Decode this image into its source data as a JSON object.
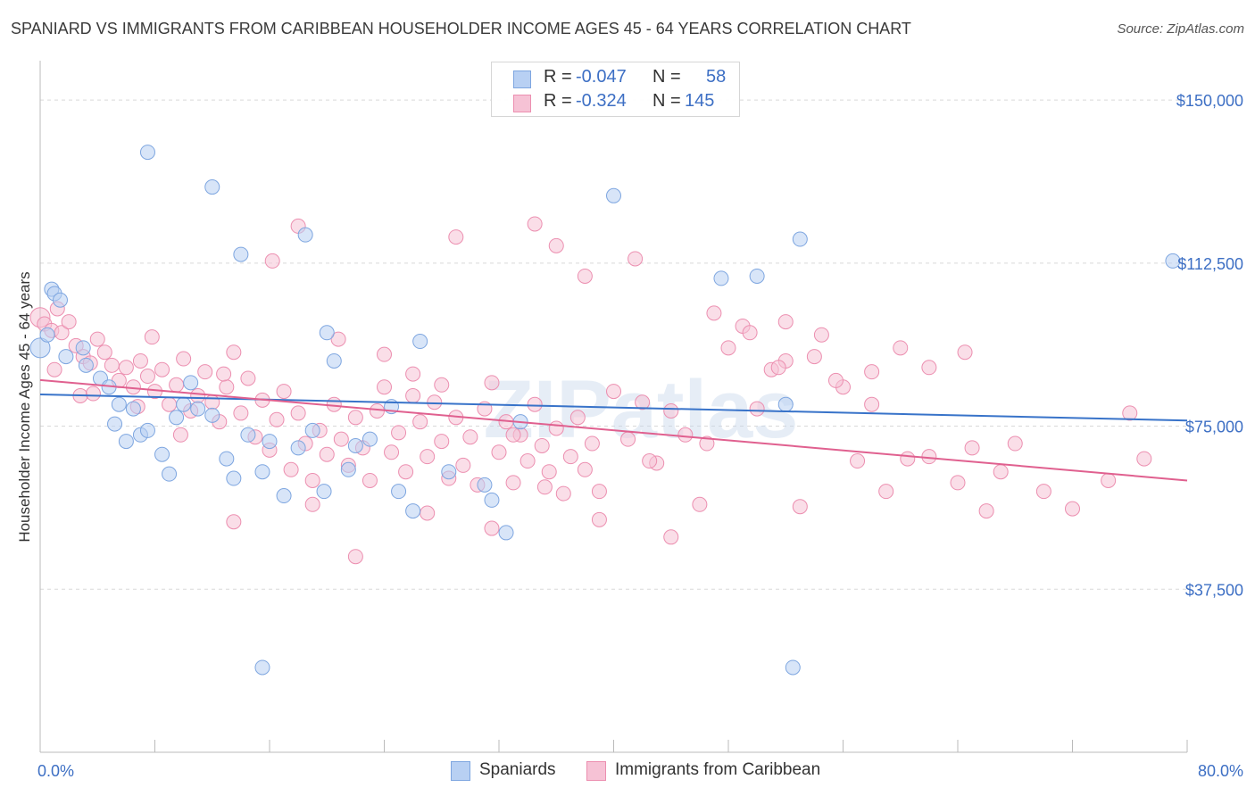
{
  "title": "SPANIARD VS IMMIGRANTS FROM CARIBBEAN HOUSEHOLDER INCOME AGES 45 - 64 YEARS CORRELATION CHART",
  "source": "Source: ZipAtlas.com",
  "watermark": "ZIPatlas",
  "legend": {
    "rows": [
      {
        "r_label": "R =",
        "r_value": "-0.047",
        "n_label": "N =",
        "n_value": "58",
        "color": "#7ea6e0",
        "fill": "#b8d0f3"
      },
      {
        "r_label": "R =",
        "r_value": "-0.324",
        "n_label": "N =",
        "n_value": "145",
        "color": "#ec8fb0",
        "fill": "#f6c2d5"
      }
    ]
  },
  "bottom_legend": [
    {
      "label": "Spaniards",
      "color": "#7ea6e0",
      "fill": "#b8d0f3"
    },
    {
      "label": "Immigrants from Caribbean",
      "color": "#ec8fb0",
      "fill": "#f6c2d5"
    }
  ],
  "chart_data": {
    "type": "scatter",
    "ylabel": "Householder Income Ages 45 - 64 years",
    "x_tick_labels": [
      "0.0%",
      "80.0%"
    ],
    "y_tick_labels": [
      "$150,000",
      "$112,500",
      "$75,000",
      "$37,500"
    ],
    "y_ticks": [
      150000,
      112500,
      75000,
      37500
    ],
    "xlim": [
      0,
      80
    ],
    "ylim": [
      0,
      157000
    ],
    "grid": true,
    "colors": {
      "blue": "#3873c9",
      "pink": "#e0608f",
      "axis_text": "#3d6fc4"
    },
    "series": [
      {
        "name": "Spaniards",
        "color": "#7ea6e0",
        "fill": "#b8d0f3",
        "trend": {
          "x": [
            0,
            80
          ],
          "y": [
            82300,
            76300
          ]
        },
        "points": [
          [
            0.0,
            93000
          ],
          [
            0.8,
            106500
          ],
          [
            1.0,
            105500
          ],
          [
            1.4,
            104000
          ],
          [
            0.5,
            96000
          ],
          [
            1.8,
            91000
          ],
          [
            3.0,
            93000
          ],
          [
            3.2,
            89000
          ],
          [
            4.2,
            86000
          ],
          [
            4.8,
            84000
          ],
          [
            5.5,
            80000
          ],
          [
            5.2,
            75500
          ],
          [
            6.5,
            79000
          ],
          [
            6.0,
            71500
          ],
          [
            7.0,
            73000
          ],
          [
            7.5,
            74000
          ],
          [
            8.5,
            68500
          ],
          [
            9.0,
            64000
          ],
          [
            9.5,
            77000
          ],
          [
            10.0,
            80000
          ],
          [
            10.5,
            85000
          ],
          [
            11.0,
            79000
          ],
          [
            12.0,
            77500
          ],
          [
            13.0,
            67500
          ],
          [
            13.5,
            63000
          ],
          [
            14.5,
            73000
          ],
          [
            15.5,
            64500
          ],
          [
            16.0,
            71500
          ],
          [
            17.0,
            59000
          ],
          [
            18.0,
            70000
          ],
          [
            19.0,
            74000
          ],
          [
            19.8,
            60000
          ],
          [
            20.5,
            90000
          ],
          [
            21.5,
            65000
          ],
          [
            22.0,
            70500
          ],
          [
            23.0,
            72000
          ],
          [
            24.5,
            79500
          ],
          [
            25.0,
            60000
          ],
          [
            26.0,
            55500
          ],
          [
            28.5,
            64500
          ],
          [
            31.0,
            61500
          ],
          [
            31.5,
            58000
          ],
          [
            32.5,
            50500
          ],
          [
            33.5,
            76000
          ],
          [
            7.5,
            138000
          ],
          [
            12.0,
            130000
          ],
          [
            14.0,
            114500
          ],
          [
            18.5,
            119000
          ],
          [
            20.0,
            96500
          ],
          [
            26.5,
            94500
          ],
          [
            40.0,
            128000
          ],
          [
            47.5,
            109000
          ],
          [
            50.0,
            109500
          ],
          [
            52.0,
            80000
          ],
          [
            52.5,
            19500
          ],
          [
            53.0,
            118000
          ],
          [
            79.0,
            113000
          ],
          [
            15.5,
            19500
          ]
        ]
      },
      {
        "name": "Immigrants from Caribbean",
        "color": "#ec8fb0",
        "fill": "#f6c2d5",
        "trend": {
          "x": [
            0,
            80
          ],
          "y": [
            85600,
            62500
          ]
        },
        "points": [
          [
            0.0,
            100000
          ],
          [
            0.3,
            98500
          ],
          [
            0.8,
            97000
          ],
          [
            1.2,
            102000
          ],
          [
            1.5,
            96500
          ],
          [
            2.0,
            99000
          ],
          [
            2.5,
            93500
          ],
          [
            3.0,
            91000
          ],
          [
            3.5,
            89500
          ],
          [
            4.0,
            95000
          ],
          [
            4.5,
            92000
          ],
          [
            5.0,
            89000
          ],
          [
            5.5,
            85500
          ],
          [
            6.0,
            88500
          ],
          [
            6.5,
            84000
          ],
          [
            7.0,
            90000
          ],
          [
            7.5,
            86500
          ],
          [
            8.0,
            83000
          ],
          [
            8.5,
            88000
          ],
          [
            9.0,
            80000
          ],
          [
            9.5,
            84500
          ],
          [
            10.0,
            90500
          ],
          [
            10.5,
            78500
          ],
          [
            11.0,
            82000
          ],
          [
            11.5,
            87500
          ],
          [
            12.0,
            80500
          ],
          [
            12.5,
            76000
          ],
          [
            13.0,
            84000
          ],
          [
            13.5,
            92000
          ],
          [
            14.0,
            78000
          ],
          [
            14.5,
            86000
          ],
          [
            15.0,
            72500
          ],
          [
            15.5,
            81000
          ],
          [
            16.0,
            69500
          ],
          [
            16.5,
            76500
          ],
          [
            17.0,
            83000
          ],
          [
            17.5,
            65000
          ],
          [
            18.0,
            78000
          ],
          [
            18.5,
            71000
          ],
          [
            19.0,
            62500
          ],
          [
            19.5,
            74000
          ],
          [
            20.0,
            68500
          ],
          [
            20.5,
            80000
          ],
          [
            21.0,
            72000
          ],
          [
            21.5,
            66000
          ],
          [
            22.0,
            77000
          ],
          [
            22.5,
            70000
          ],
          [
            23.0,
            62500
          ],
          [
            23.5,
            78500
          ],
          [
            24.0,
            84000
          ],
          [
            24.5,
            69000
          ],
          [
            25.0,
            73500
          ],
          [
            25.5,
            64500
          ],
          [
            26.0,
            82000
          ],
          [
            26.5,
            76000
          ],
          [
            27.0,
            68000
          ],
          [
            27.5,
            80500
          ],
          [
            28.0,
            71500
          ],
          [
            28.5,
            63000
          ],
          [
            29.0,
            77000
          ],
          [
            29.5,
            66000
          ],
          [
            30.0,
            72500
          ],
          [
            30.5,
            61500
          ],
          [
            31.0,
            79000
          ],
          [
            31.5,
            85000
          ],
          [
            32.0,
            69000
          ],
          [
            32.5,
            76000
          ],
          [
            33.0,
            62000
          ],
          [
            33.5,
            73000
          ],
          [
            34.0,
            67000
          ],
          [
            34.5,
            80000
          ],
          [
            35.0,
            70500
          ],
          [
            35.5,
            64500
          ],
          [
            36.0,
            74500
          ],
          [
            36.5,
            59500
          ],
          [
            37.0,
            68000
          ],
          [
            37.5,
            77000
          ],
          [
            38.0,
            65000
          ],
          [
            38.5,
            71000
          ],
          [
            39.0,
            60000
          ],
          [
            40.0,
            83000
          ],
          [
            41.0,
            72000
          ],
          [
            42.0,
            80500
          ],
          [
            43.0,
            66500
          ],
          [
            44.0,
            78500
          ],
          [
            45.0,
            73000
          ],
          [
            46.5,
            71000
          ],
          [
            48.0,
            93000
          ],
          [
            49.0,
            98000
          ],
          [
            50.0,
            79000
          ],
          [
            51.0,
            88000
          ],
          [
            52.0,
            90000
          ],
          [
            53.0,
            56500
          ],
          [
            54.0,
            91000
          ],
          [
            56.0,
            84000
          ],
          [
            57.0,
            67000
          ],
          [
            58.0,
            80000
          ],
          [
            59.0,
            60000
          ],
          [
            60.5,
            67500
          ],
          [
            62.0,
            68000
          ],
          [
            64.0,
            62000
          ],
          [
            65.0,
            70000
          ],
          [
            66.0,
            55500
          ],
          [
            67.0,
            64500
          ],
          [
            68.0,
            71000
          ],
          [
            70.0,
            60000
          ],
          [
            72.0,
            56000
          ],
          [
            74.5,
            62500
          ],
          [
            76.0,
            78000
          ],
          [
            77.0,
            67500
          ],
          [
            1.0,
            88000
          ],
          [
            2.8,
            82000
          ],
          [
            6.8,
            79500
          ],
          [
            9.8,
            73000
          ],
          [
            12.8,
            87000
          ],
          [
            18.0,
            121000
          ],
          [
            24.0,
            91500
          ],
          [
            29.0,
            118500
          ],
          [
            34.5,
            121500
          ],
          [
            36.0,
            116500
          ],
          [
            13.5,
            53000
          ],
          [
            19.0,
            57000
          ],
          [
            22.0,
            45000
          ],
          [
            27.0,
            55000
          ],
          [
            31.5,
            51500
          ],
          [
            39.0,
            53500
          ],
          [
            44.0,
            49500
          ],
          [
            46.0,
            57000
          ],
          [
            52.0,
            99000
          ],
          [
            54.5,
            96000
          ],
          [
            55.5,
            85500
          ],
          [
            58.0,
            87500
          ],
          [
            60.0,
            93000
          ],
          [
            62.0,
            88500
          ],
          [
            7.8,
            95500
          ],
          [
            3.7,
            82500
          ],
          [
            16.2,
            113000
          ],
          [
            20.8,
            95000
          ],
          [
            26.0,
            87000
          ],
          [
            28.0,
            84500
          ],
          [
            38.0,
            109500
          ],
          [
            41.5,
            113500
          ],
          [
            47.0,
            101000
          ],
          [
            49.5,
            96500
          ],
          [
            51.5,
            88500
          ],
          [
            64.5,
            92000
          ],
          [
            33.0,
            73000
          ],
          [
            35.2,
            61000
          ],
          [
            42.5,
            67000
          ]
        ]
      }
    ]
  }
}
